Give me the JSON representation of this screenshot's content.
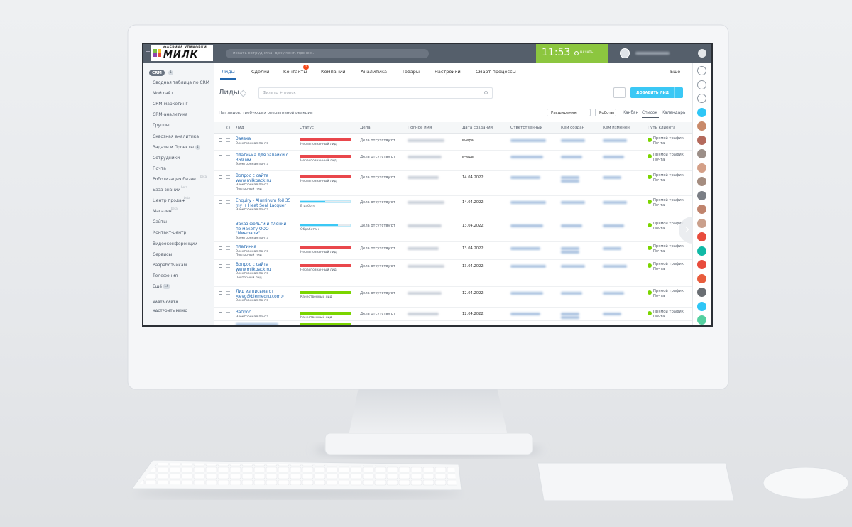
{
  "header": {
    "logo_top": "ФАБРИКА УПАКОВКИ",
    "logo_name": "МИЛК",
    "search_placeholder": "искать сотрудника, документ, прочее...",
    "time": "11:53",
    "start": "НАЧАТЬ"
  },
  "sidebar": {
    "items": [
      {
        "label": "CRM",
        "badge": 1
      },
      {
        "label": "Сводная таблица по CRM"
      },
      {
        "label": "Мой сайт"
      },
      {
        "label": "CRM-маркетинг"
      },
      {
        "label": "CRM-аналитика"
      },
      {
        "label": "Группы"
      },
      {
        "label": "Сквозная аналитика"
      },
      {
        "label": "Задачи и Проекты",
        "badge": 1
      },
      {
        "label": "Сотрудники"
      },
      {
        "label": "Почта"
      },
      {
        "label": "Роботизация бизне...",
        "tag": "beta"
      },
      {
        "label": "База знаний",
        "tag": "beta"
      },
      {
        "label": "Центр продаж",
        "tag": "beta"
      },
      {
        "label": "Магазин",
        "tag": "beta"
      },
      {
        "label": "Сайты"
      },
      {
        "label": "Контакт-центр"
      },
      {
        "label": "Видеоконференции"
      },
      {
        "label": "Сервисы"
      },
      {
        "label": "Разработчикам"
      },
      {
        "label": "Телефония"
      },
      {
        "label": "Ещё",
        "badge": 14
      }
    ],
    "footer_links": [
      "КАРТА САЙТА",
      "НАСТРОИТЬ МЕНЮ"
    ]
  },
  "tabs": [
    {
      "label": "Лиды",
      "active": true
    },
    {
      "label": "Сделки"
    },
    {
      "label": "Контакты",
      "badge": 1
    },
    {
      "label": "Компании"
    },
    {
      "label": "Аналитика"
    },
    {
      "label": "Товары"
    },
    {
      "label": "Настройки"
    },
    {
      "label": "Смарт-процессы"
    },
    {
      "label": "Еще"
    }
  ],
  "toolbar": {
    "title": "Лиды",
    "filter_placeholder": "Фильтр + поиск",
    "add_button": "ДОБАВИТЬ ЛИД",
    "notice": "Нет лидов, требующих оперативной реакции",
    "buttons": [
      "Расширения",
      "Роботы"
    ],
    "views": [
      "Канбан",
      "Список",
      "Календарь"
    ]
  },
  "table": {
    "columns": [
      "Лид",
      "Статус",
      "Дела",
      "Полное имя",
      "Дата создания",
      "Ответственный",
      "Кем создан",
      "Кем изменен",
      "Путь клиента"
    ],
    "rows": [
      {
        "lead": "Заявка",
        "source": "Электронная почта",
        "status": "Нераспознанный лид",
        "status_color": "#e9474c",
        "progress": 100,
        "activity": "Дела отсутствуют",
        "date": "вчера",
        "path": "Прямой трафик",
        "channel": "Почта"
      },
      {
        "lead": "платинка для запайки d 369 мм",
        "source": "Электронная почта",
        "status": "Нераспознанный лид",
        "status_color": "#e9474c",
        "progress": 100,
        "activity": "Дела отсутствуют",
        "date": "вчера",
        "path": "Прямой трафик",
        "channel": "Почта"
      },
      {
        "lead": "Вопрос с сайта www.milkpack.ru",
        "source": "Электронная почта",
        "note": "Повторный лид",
        "status": "Нераспознанный лид",
        "status_color": "#e9474c",
        "progress": 100,
        "activity": "Дела отсутствуют",
        "date": "14.04.2022",
        "path": "Прямой трафик",
        "channel": "Почта"
      },
      {
        "lead": "Enquiry - Aluminum foil 35 my + Heat Seal Lacquer",
        "source": "Электронная почта",
        "status": "В работе",
        "status_color": "#3bc8f5",
        "progress": 50,
        "activity": "Дела отсутствуют",
        "date": "14.04.2022",
        "path": "Прямой трафик",
        "channel": "Почта"
      },
      {
        "lead": "Заказ фольги и пленки по макету ООО \"Минфарм\"",
        "source": "Электронная почта",
        "status": "Обработан",
        "status_color": "#3bc8f5",
        "progress": 75,
        "activity": "Дела отсутствуют",
        "date": "13.04.2022",
        "path": "Прямой трафик",
        "channel": "Почта"
      },
      {
        "lead": "платинка",
        "source": "Электронная почта",
        "note": "Повторный лид",
        "status": "Нераспознанный лид",
        "status_color": "#e9474c",
        "progress": 100,
        "activity": "Дела отсутствуют",
        "date": "13.04.2022",
        "path": "Прямой трафик",
        "channel": "Почта"
      },
      {
        "lead": "Вопрос с сайта www.milkpack.ru",
        "source": "Электронная почта",
        "note": "Повторный лид",
        "status": "Нераспознанный лид",
        "status_color": "#e9474c",
        "progress": 100,
        "activity": "Дела отсутствуют",
        "date": "13.04.2022",
        "path": "Прямой трафик",
        "channel": "Почта"
      },
      {
        "lead": "Лид из письма от <evg@biemedru.com>",
        "source": "Электронная почта",
        "status": "Качественный лид",
        "status_color": "#7bd500",
        "progress": 100,
        "activity": "Дела отсутствуют",
        "date": "12.04.2022",
        "path": "Прямой трафик",
        "channel": "Почта"
      },
      {
        "lead": "Запрос",
        "source": "Электронная почта",
        "status": "Качественный лид",
        "status_color": "#7bd500",
        "progress": 100,
        "activity": "Дела отсутствуют",
        "date": "12.04.2022",
        "path": "Прямой трафик",
        "channel": "Почта"
      }
    ]
  }
}
